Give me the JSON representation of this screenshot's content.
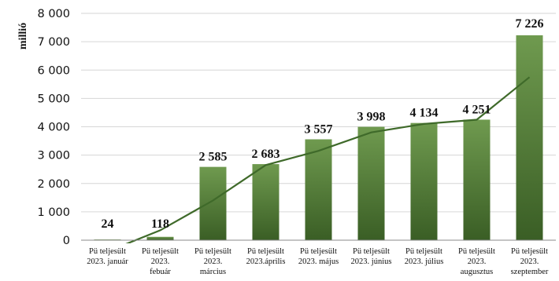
{
  "chart_data": {
    "type": "bar",
    "ylabel": "millió",
    "ylim": [
      0,
      8000
    ],
    "yticks": [
      0,
      1000,
      2000,
      3000,
      4000,
      5000,
      6000,
      7000,
      8000
    ],
    "ytick_labels": [
      "0",
      "1 000",
      "2 000",
      "3 000",
      "4 000",
      "5 000",
      "6 000",
      "7 000",
      "8 000"
    ],
    "grid": true,
    "legend": "none",
    "categories": [
      [
        "Pü teljesült",
        "2023. január"
      ],
      [
        "Pü teljesült",
        "2023.",
        "febuár"
      ],
      [
        "Pü teljesült",
        "2023.",
        "március"
      ],
      [
        "Pü teljesült",
        "2023.április"
      ],
      [
        "Pü teljesült",
        "2023. május"
      ],
      [
        "Pü teljesült",
        "2023. június"
      ],
      [
        "Pü teljesült",
        "2023. július"
      ],
      [
        "Pü teljesült",
        "2023.",
        "augusztus"
      ],
      [
        "Pü teljesült",
        "2023.",
        "szeptember"
      ]
    ],
    "values": [
      24,
      118,
      2585,
      2683,
      3557,
      3998,
      4134,
      4251,
      7226
    ],
    "value_labels": [
      "24",
      "118",
      "2 585",
      "2 683",
      "3 557",
      "3 998",
      "4 134",
      "4 251",
      "7 226"
    ],
    "trendline": {
      "type": "line",
      "values": [
        -400,
        350,
        1400,
        2650,
        3150,
        3800,
        4100,
        4250,
        5750
      ]
    },
    "colors": {
      "bar_top": "#6f9a4f",
      "bar_bottom": "#3a5e25",
      "line": "#3f6a2a",
      "grid": "#d6d6d6",
      "axis": "#888888"
    }
  }
}
